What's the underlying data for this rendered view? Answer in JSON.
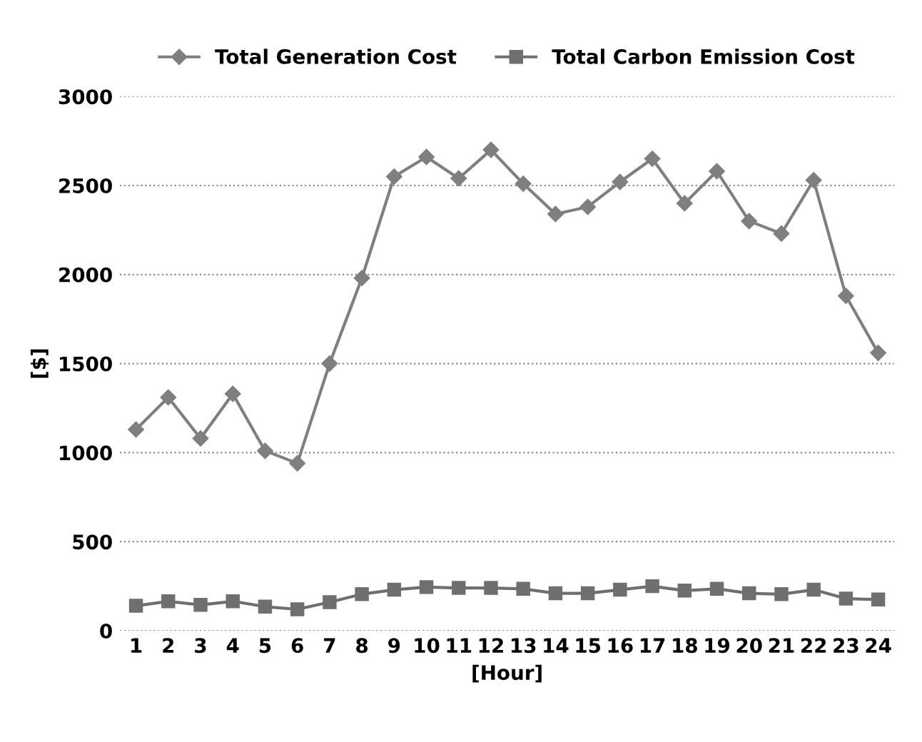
{
  "chart_data": {
    "type": "line",
    "xlabel": "[Hour]",
    "ylabel": "[$]",
    "categories": [
      "1",
      "2",
      "3",
      "4",
      "5",
      "6",
      "7",
      "8",
      "9",
      "10",
      "11",
      "12",
      "13",
      "14",
      "15",
      "16",
      "17",
      "18",
      "19",
      "20",
      "21",
      "22",
      "23",
      "24"
    ],
    "series": [
      {
        "name": "Total Generation Cost",
        "color": "#7f7f7f",
        "marker": "diamond",
        "values": [
          1130,
          1310,
          1080,
          1330,
          1010,
          940,
          1500,
          1980,
          2550,
          2660,
          2540,
          2700,
          2510,
          2340,
          2380,
          2520,
          2650,
          2400,
          2580,
          2300,
          2230,
          2530,
          1880,
          1560
        ]
      },
      {
        "name": "Total Carbon Emission Cost",
        "color": "#6f6f6f",
        "marker": "square",
        "values": [
          140,
          165,
          145,
          165,
          135,
          120,
          160,
          205,
          230,
          245,
          240,
          240,
          235,
          210,
          210,
          230,
          250,
          225,
          235,
          210,
          205,
          230,
          180,
          175
        ]
      }
    ],
    "ylim": [
      0,
      3000
    ],
    "yticks": [
      0,
      500,
      1000,
      1500,
      2000,
      2500,
      3000
    ],
    "grid": "y",
    "legend": "top"
  }
}
